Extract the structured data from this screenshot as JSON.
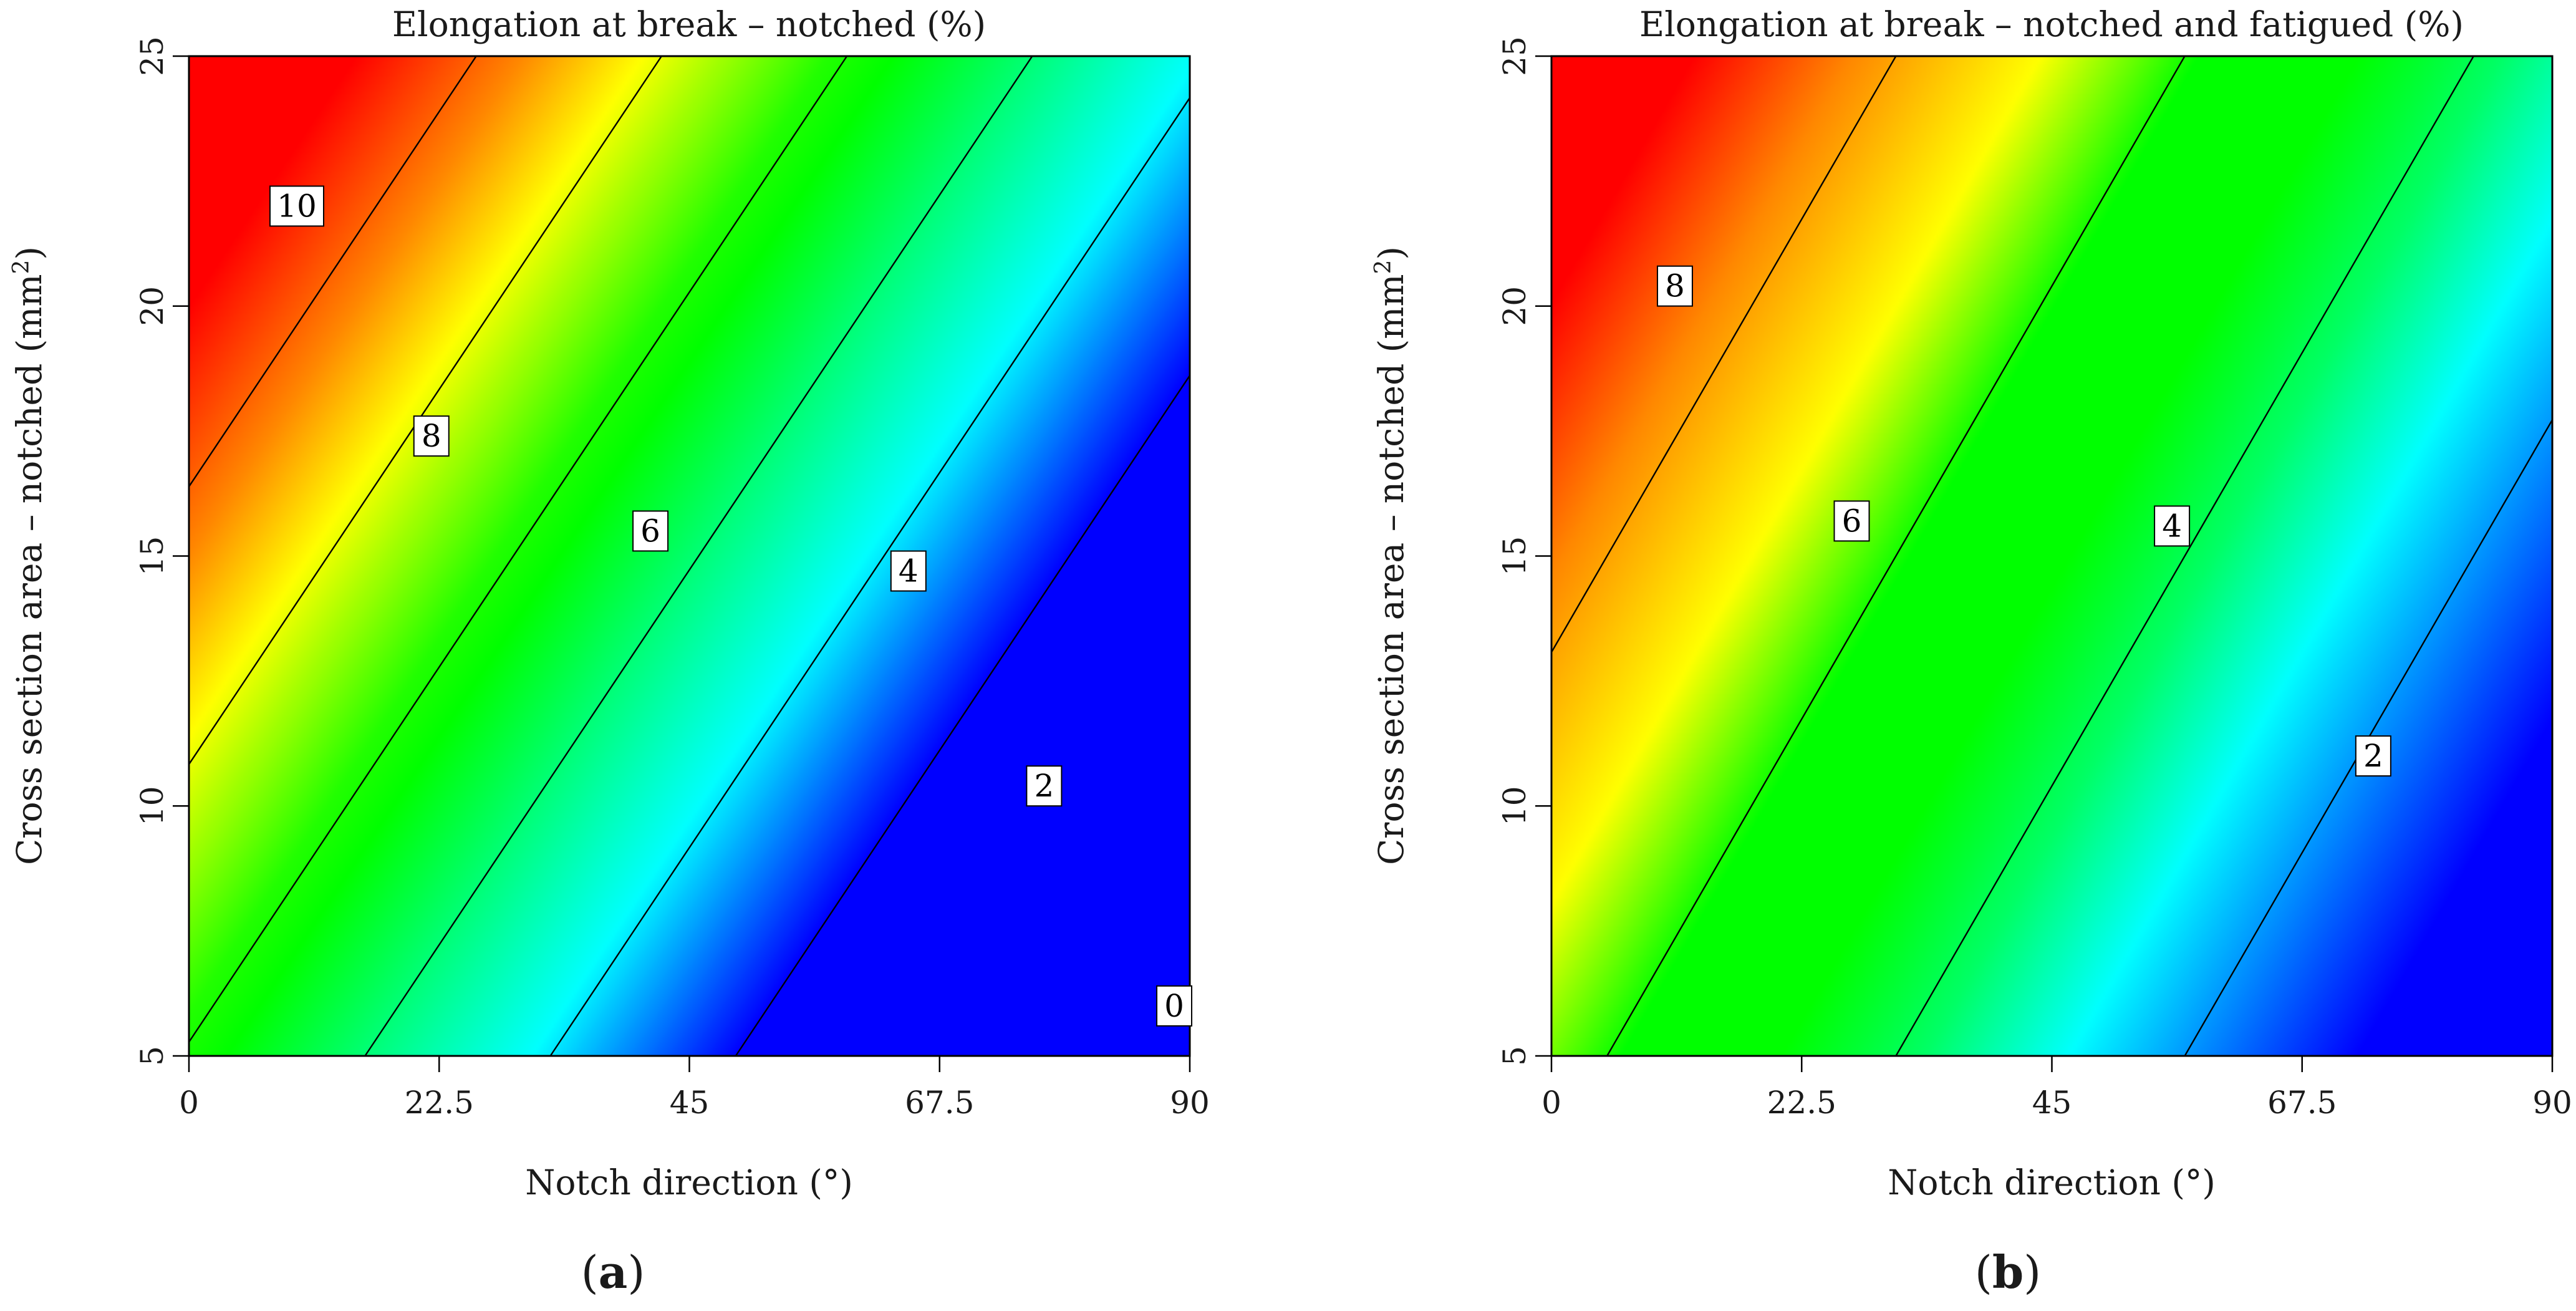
{
  "chart_data": [
    {
      "type": "heatmap",
      "panel_label": "(a)",
      "panel_letter": "a",
      "title": "Elongation at break –  notched (%)",
      "xlabel": "Notch direction (°)",
      "ylabel_main": "Cross section area –  notched (mm",
      "ylabel_sup": "2",
      "ylabel_close": ")",
      "xlim": [
        0,
        90
      ],
      "ylim": [
        5,
        25
      ],
      "x_ticks": [
        0,
        22.5,
        45,
        67.5,
        90
      ],
      "x_tick_labels": [
        "0",
        "22.5",
        "45",
        "67.5",
        "90"
      ],
      "y_ticks": [
        5,
        10,
        15,
        20,
        25
      ],
      "y_tick_labels": [
        "5",
        "10",
        "15",
        "20",
        "25"
      ],
      "model": {
        "intercept": 4.1,
        "x_coef": -0.12,
        "y_coef": 0.36
      },
      "color_scale": [
        {
          "value": 0,
          "color": "#0000ff"
        },
        {
          "value": 2.2,
          "color": "#00ffff"
        },
        {
          "value": 4.2,
          "color": "#00ff66"
        },
        {
          "value": 5.5,
          "color": "#00ff00"
        },
        {
          "value": 6.2,
          "color": "#22ff00"
        },
        {
          "value": 8.2,
          "color": "#ffff00"
        },
        {
          "value": 9.5,
          "color": "#ff8800"
        },
        {
          "value": 11.3,
          "color": "#ff0000"
        }
      ],
      "contours": [
        {
          "level": 0,
          "label": "0",
          "label_at": [
            88.6,
            6.0
          ]
        },
        {
          "level": 2,
          "label": "2",
          "label_at": [
            76.9,
            10.4
          ]
        },
        {
          "level": 4,
          "label": "4",
          "label_at": [
            64.7,
            14.7
          ]
        },
        {
          "level": 6,
          "label": "6",
          "label_at": [
            41.5,
            15.5
          ]
        },
        {
          "level": 8,
          "label": "8",
          "label_at": [
            21.8,
            17.4
          ]
        },
        {
          "level": 10,
          "label": "10",
          "label_at": [
            9.7,
            22.0
          ]
        }
      ]
    },
    {
      "type": "heatmap",
      "panel_label": "(b)",
      "panel_letter": "b",
      "title": "Elongation at break –  notched and fatigued (%)",
      "xlabel": "Notch direction (°)",
      "ylabel_main": "Cross section area –  notched (mm",
      "ylabel_sup": "2",
      "ylabel_close": ")",
      "xlim": [
        0,
        90
      ],
      "ylim": [
        5,
        25
      ],
      "x_ticks": [
        0,
        22.5,
        45,
        67.5,
        90
      ],
      "x_tick_labels": [
        "0",
        "22.5",
        "45",
        "67.5",
        "90"
      ],
      "y_ticks": [
        5,
        10,
        15,
        20,
        25
      ],
      "y_tick_labels": [
        "5",
        "10",
        "15",
        "20",
        "25"
      ],
      "model": {
        "intercept": 5.385,
        "x_coef": -0.077,
        "y_coef": 0.2
      },
      "color_scale": [
        {
          "value": 0.8,
          "color": "#0000ff"
        },
        {
          "value": 2.8,
          "color": "#00ffff"
        },
        {
          "value": 3.8,
          "color": "#00ff66"
        },
        {
          "value": 4.8,
          "color": "#00ff00"
        },
        {
          "value": 5.9,
          "color": "#00ff00"
        },
        {
          "value": 7.0,
          "color": "#ffff00"
        },
        {
          "value": 8.3,
          "color": "#ff8800"
        },
        {
          "value": 9.4,
          "color": "#ff0000"
        }
      ],
      "contours": [
        {
          "level": 2,
          "label": "2",
          "label_at": [
            73.9,
            11.0
          ]
        },
        {
          "level": 4,
          "label": "4",
          "label_at": [
            55.8,
            15.6
          ]
        },
        {
          "level": 6,
          "label": "6",
          "label_at": [
            27.0,
            15.7
          ]
        },
        {
          "level": 8,
          "label": "8",
          "label_at": [
            11.1,
            20.4
          ]
        }
      ]
    }
  ]
}
